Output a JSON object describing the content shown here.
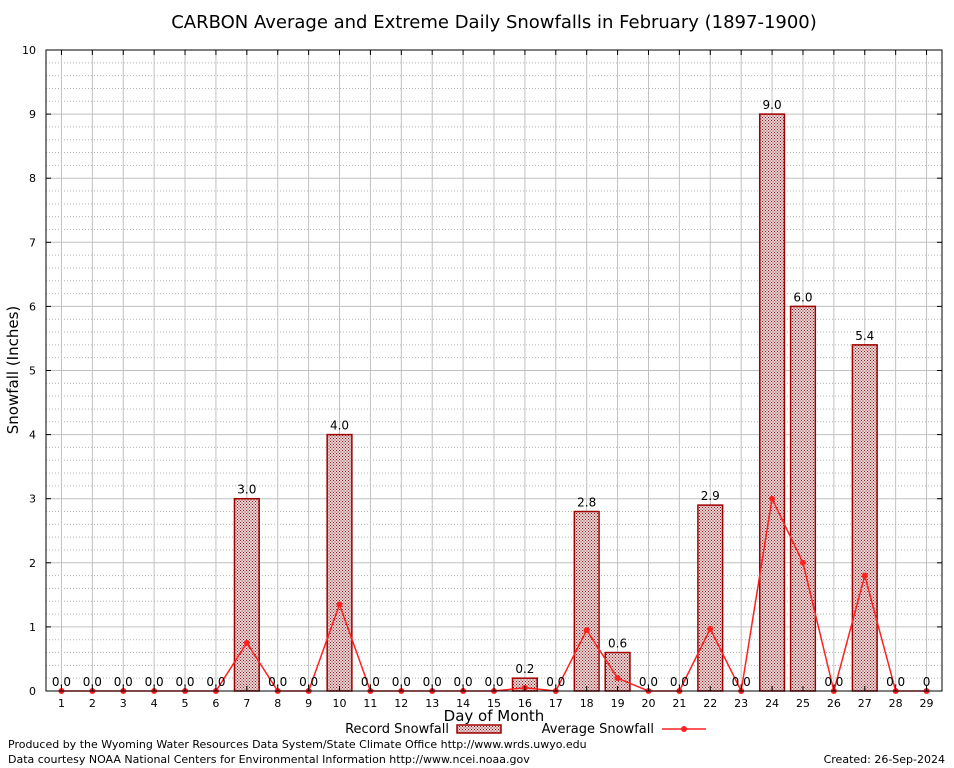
{
  "chart_data": {
    "type": "bar",
    "title": "CARBON Average and Extreme Daily Snowfalls in February (1897-1900)",
    "xlabel": "Day of Month",
    "ylabel": "Snowfall (Inches)",
    "ylim": [
      0,
      10
    ],
    "yticks": [
      "0",
      "1",
      "2",
      "3",
      "4",
      "5",
      "6",
      "7",
      "8",
      "9",
      "10"
    ],
    "categories": [
      "1",
      "2",
      "3",
      "4",
      "5",
      "6",
      "7",
      "8",
      "9",
      "10",
      "11",
      "12",
      "13",
      "14",
      "15",
      "16",
      "17",
      "18",
      "19",
      "20",
      "21",
      "22",
      "23",
      "24",
      "25",
      "26",
      "27",
      "28",
      "29"
    ],
    "grid": true,
    "legend_position": "bottom",
    "series": [
      {
        "name": "Record Snowfall",
        "kind": "bar",
        "color": "#a00000",
        "values": [
          0,
          0,
          0,
          0,
          0,
          0,
          3.0,
          0,
          0,
          4.0,
          0,
          0,
          0,
          0,
          0,
          0.2,
          0,
          2.8,
          0.6,
          0,
          0,
          2.9,
          0,
          9.0,
          6.0,
          0,
          5.4,
          0,
          0
        ],
        "labels": [
          "0.0",
          "0.0",
          "0.0",
          "0.0",
          "0.0",
          "0.0",
          "3.0",
          "0.0",
          "0.0",
          "4.0",
          "0.0",
          "0.0",
          "0.0",
          "0.0",
          "0.0",
          "0.2",
          "0.0",
          "2.8",
          "0.6",
          "0.0",
          "0.0",
          "2.9",
          "0.0",
          "9.0",
          "6.0",
          "0.0",
          "5.4",
          "0.0",
          "0"
        ]
      },
      {
        "name": "Average Snowfall",
        "kind": "line",
        "color": "#ff2020",
        "values": [
          0,
          0,
          0,
          0,
          0,
          0,
          0.75,
          0,
          0,
          1.35,
          0,
          0,
          0,
          0,
          0,
          0.05,
          0,
          0.95,
          0.2,
          0,
          0,
          0.97,
          0,
          3.0,
          2.0,
          0,
          1.8,
          0,
          0
        ]
      }
    ]
  },
  "footer": {
    "produced_by": "Produced by the Wyoming Water Resources Data System/State Climate Office http://www.wrds.uwyo.edu",
    "courtesy": "Data courtesy NOAA National Centers for Environmental Information http://www.ncei.noaa.gov",
    "created": "Created: 26-Sep-2024"
  }
}
